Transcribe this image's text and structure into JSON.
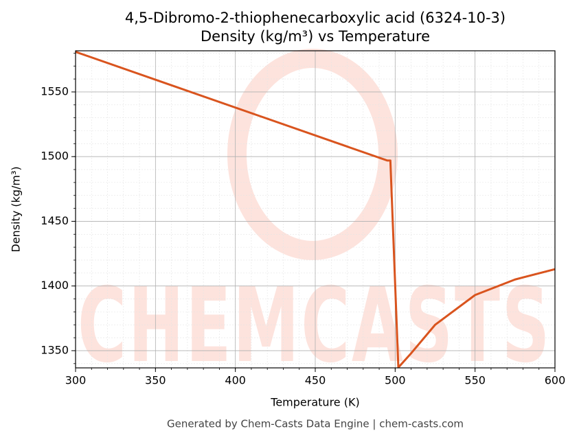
{
  "chart_data": {
    "type": "line",
    "title": "4,5-Dibromo-2-thiophenecarboxylic acid (6324-10-3)",
    "subtitle": "Density (kg/m³) vs Temperature",
    "x_label": "Temperature (K)",
    "y_label": "Density (kg/m³)",
    "footer": "Generated by Chem-Casts Data Engine | chem-casts.com",
    "watermark": "CHEMCASTS",
    "grid": true,
    "minor_grid": true,
    "xlim": [
      300,
      600
    ],
    "xticks": [
      300,
      350,
      400,
      450,
      500,
      550,
      600
    ],
    "ylim": [
      1336.7,
      1581.8
    ],
    "yticks": [
      1350,
      1400,
      1450,
      1500,
      1550
    ],
    "series": [
      {
        "name": "Density",
        "color": "#d9541e",
        "x": [
          300,
          495,
          497,
          502,
          510,
          525,
          550,
          575,
          600
        ],
        "values": [
          1581,
          1497,
          1497,
          1337,
          1348,
          1370,
          1393,
          1405,
          1413
        ]
      }
    ]
  }
}
